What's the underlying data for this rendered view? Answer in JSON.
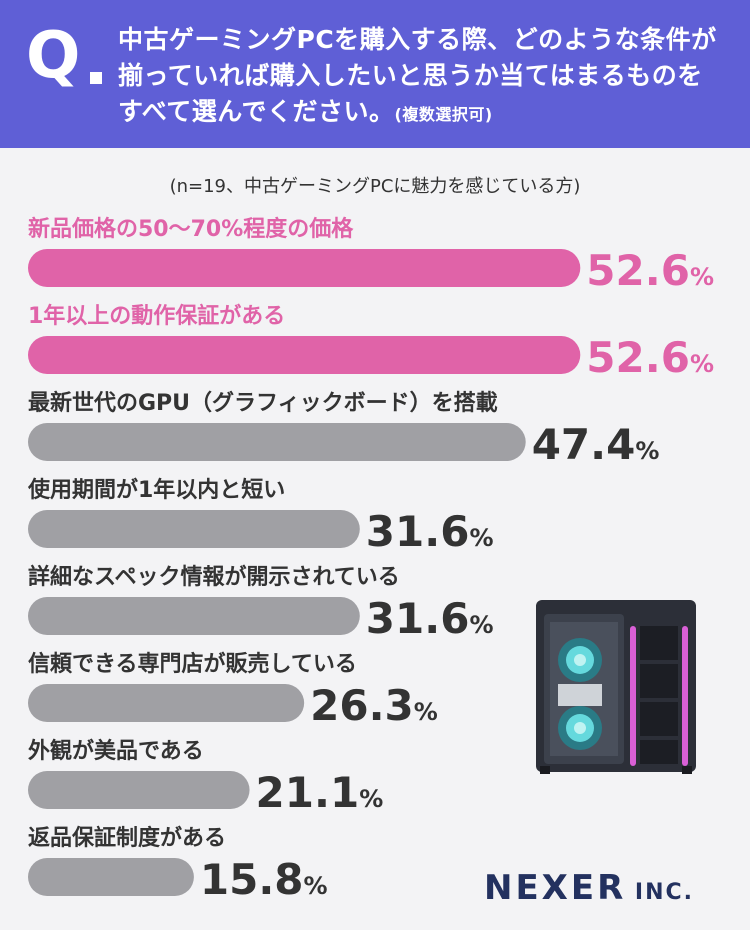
{
  "header": {
    "q": "Q",
    "question": "中古ゲーミングPCを購入する際、どのような条件が揃っていれば購入したいと思うか当てはまるものをすべて選んでください。",
    "question_note": "(複数選択可)"
  },
  "subtitle": "(n=19、中古ゲーミングPCに魅力を感じている方)",
  "colors": {
    "header": "#5f5fd6",
    "highlight": "#e063a8",
    "normal": "#a0a0a4",
    "text": "#333333",
    "logo": "#23315f"
  },
  "chart_data": {
    "type": "bar",
    "orientation": "horizontal",
    "unit": "%",
    "categories": [
      "新品価格の50〜70%程度の価格",
      "1年以上の動作保証がある",
      "最新世代のGPU（グラフィックボード）を搭載",
      "使用期間が1年以内と短い",
      "詳細なスペック情報が開示されている",
      "信頼できる専門店が販売している",
      "外観が美品である",
      "返品保証制度がある"
    ],
    "values": [
      52.6,
      52.6,
      47.4,
      31.6,
      31.6,
      26.3,
      21.1,
      15.8
    ],
    "highlight": [
      true,
      true,
      false,
      false,
      false,
      false,
      false,
      false
    ]
  },
  "logo": {
    "name": "NEXER",
    "suffix": "INC."
  }
}
